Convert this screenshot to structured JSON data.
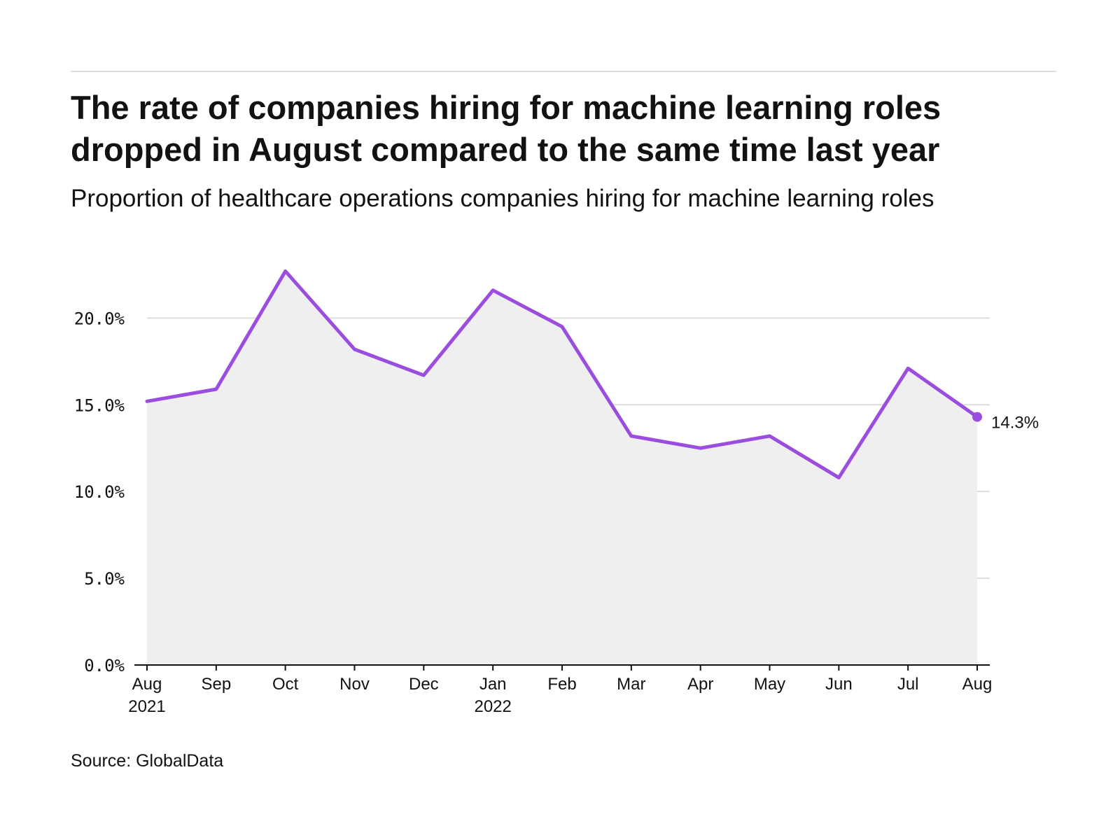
{
  "header": {
    "title": "The rate of companies hiring for machine learning roles dropped in August compared to the same time last year",
    "subtitle": "Proportion of healthcare operations companies hiring for machine learning roles"
  },
  "footer": {
    "source": "Source: GlobalData"
  },
  "colors": {
    "line": "#9b4de0",
    "area": "#efefef",
    "grid": "#dddddd",
    "axis": "#121212",
    "text": "#121212"
  },
  "chart_data": {
    "type": "area",
    "title": "The rate of companies hiring for machine learning roles dropped in August compared to the same time last year",
    "subtitle": "Proportion of healthcare operations companies hiring for machine learning roles",
    "xlabel": "",
    "ylabel": "",
    "categories": [
      "Aug",
      "Sep",
      "Oct",
      "Nov",
      "Dec",
      "Jan",
      "Feb",
      "Mar",
      "Apr",
      "May",
      "Jun",
      "Jul",
      "Aug"
    ],
    "category_years": [
      "2021",
      "",
      "",
      "",
      "",
      "2022",
      "",
      "",
      "",
      "",
      "",
      "",
      ""
    ],
    "series": [
      {
        "name": "Companies hiring for machine learning roles",
        "values": [
          15.2,
          15.9,
          22.7,
          18.2,
          16.7,
          21.6,
          19.5,
          13.2,
          12.5,
          13.2,
          10.8,
          17.1,
          14.3
        ]
      }
    ],
    "ylim": [
      0,
      23
    ],
    "yticks": [
      0,
      5,
      10,
      15,
      20
    ],
    "ytick_labels": [
      "0.0%",
      "5.0%",
      "10.0%",
      "15.0%",
      "20.0%"
    ],
    "end_label": "14.3%",
    "grid": true,
    "legend": "none"
  }
}
